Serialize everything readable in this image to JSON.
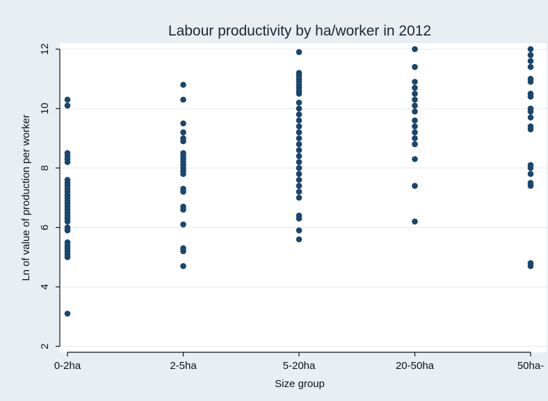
{
  "chart_data": {
    "type": "scatter",
    "title": "Labour productivity by ha/worker in 2012",
    "xlabel": "Size group",
    "ylabel": "Ln of value of production per worker",
    "categories": [
      "0-2ha",
      "2-5ha",
      "5-20ha",
      "20-50ha",
      "50ha-"
    ],
    "yticks": [
      2,
      4,
      6,
      8,
      10,
      12
    ],
    "ylim": [
      1.8,
      12.2
    ],
    "grid": true,
    "legend": "none",
    "point_color": "#1a466d",
    "series": [
      {
        "points": [
          {
            "x": "0-2ha",
            "y": 10.3
          },
          {
            "x": "0-2ha",
            "y": 10.1
          },
          {
            "x": "0-2ha",
            "y": 8.5
          },
          {
            "x": "0-2ha",
            "y": 8.4
          },
          {
            "x": "0-2ha",
            "y": 8.3
          },
          {
            "x": "0-2ha",
            "y": 8.2
          },
          {
            "x": "0-2ha",
            "y": 7.6
          },
          {
            "x": "0-2ha",
            "y": 7.5
          },
          {
            "x": "0-2ha",
            "y": 7.4
          },
          {
            "x": "0-2ha",
            "y": 7.3
          },
          {
            "x": "0-2ha",
            "y": 7.2
          },
          {
            "x": "0-2ha",
            "y": 7.1
          },
          {
            "x": "0-2ha",
            "y": 7.0
          },
          {
            "x": "0-2ha",
            "y": 6.9
          },
          {
            "x": "0-2ha",
            "y": 6.8
          },
          {
            "x": "0-2ha",
            "y": 6.7
          },
          {
            "x": "0-2ha",
            "y": 6.6
          },
          {
            "x": "0-2ha",
            "y": 6.5
          },
          {
            "x": "0-2ha",
            "y": 6.4
          },
          {
            "x": "0-2ha",
            "y": 6.3
          },
          {
            "x": "0-2ha",
            "y": 6.2
          },
          {
            "x": "0-2ha",
            "y": 6.0
          },
          {
            "x": "0-2ha",
            "y": 5.9
          },
          {
            "x": "0-2ha",
            "y": 5.5
          },
          {
            "x": "0-2ha",
            "y": 5.4
          },
          {
            "x": "0-2ha",
            "y": 5.3
          },
          {
            "x": "0-2ha",
            "y": 5.2
          },
          {
            "x": "0-2ha",
            "y": 5.1
          },
          {
            "x": "0-2ha",
            "y": 5.0
          },
          {
            "x": "0-2ha",
            "y": 3.1
          },
          {
            "x": "2-5ha",
            "y": 10.8
          },
          {
            "x": "2-5ha",
            "y": 10.3
          },
          {
            "x": "2-5ha",
            "y": 9.5
          },
          {
            "x": "2-5ha",
            "y": 9.2
          },
          {
            "x": "2-5ha",
            "y": 9.0
          },
          {
            "x": "2-5ha",
            "y": 8.9
          },
          {
            "x": "2-5ha",
            "y": 8.5
          },
          {
            "x": "2-5ha",
            "y": 8.4
          },
          {
            "x": "2-5ha",
            "y": 8.3
          },
          {
            "x": "2-5ha",
            "y": 8.2
          },
          {
            "x": "2-5ha",
            "y": 8.1
          },
          {
            "x": "2-5ha",
            "y": 8.0
          },
          {
            "x": "2-5ha",
            "y": 7.9
          },
          {
            "x": "2-5ha",
            "y": 7.8
          },
          {
            "x": "2-5ha",
            "y": 7.3
          },
          {
            "x": "2-5ha",
            "y": 7.2
          },
          {
            "x": "2-5ha",
            "y": 6.7
          },
          {
            "x": "2-5ha",
            "y": 6.6
          },
          {
            "x": "2-5ha",
            "y": 6.1
          },
          {
            "x": "2-5ha",
            "y": 5.3
          },
          {
            "x": "2-5ha",
            "y": 5.2
          },
          {
            "x": "2-5ha",
            "y": 4.7
          },
          {
            "x": "5-20ha",
            "y": 11.9
          },
          {
            "x": "5-20ha",
            "y": 11.2
          },
          {
            "x": "5-20ha",
            "y": 11.1
          },
          {
            "x": "5-20ha",
            "y": 11.0
          },
          {
            "x": "5-20ha",
            "y": 10.9
          },
          {
            "x": "5-20ha",
            "y": 10.8
          },
          {
            "x": "5-20ha",
            "y": 10.7
          },
          {
            "x": "5-20ha",
            "y": 10.6
          },
          {
            "x": "5-20ha",
            "y": 10.5
          },
          {
            "x": "5-20ha",
            "y": 10.2
          },
          {
            "x": "5-20ha",
            "y": 10.0
          },
          {
            "x": "5-20ha",
            "y": 9.8
          },
          {
            "x": "5-20ha",
            "y": 9.6
          },
          {
            "x": "5-20ha",
            "y": 9.4
          },
          {
            "x": "5-20ha",
            "y": 9.2
          },
          {
            "x": "5-20ha",
            "y": 9.0
          },
          {
            "x": "5-20ha",
            "y": 8.8
          },
          {
            "x": "5-20ha",
            "y": 8.6
          },
          {
            "x": "5-20ha",
            "y": 8.4
          },
          {
            "x": "5-20ha",
            "y": 8.2
          },
          {
            "x": "5-20ha",
            "y": 8.0
          },
          {
            "x": "5-20ha",
            "y": 7.8
          },
          {
            "x": "5-20ha",
            "y": 7.6
          },
          {
            "x": "5-20ha",
            "y": 7.4
          },
          {
            "x": "5-20ha",
            "y": 7.2
          },
          {
            "x": "5-20ha",
            "y": 7.0
          },
          {
            "x": "5-20ha",
            "y": 6.4
          },
          {
            "x": "5-20ha",
            "y": 6.3
          },
          {
            "x": "5-20ha",
            "y": 5.9
          },
          {
            "x": "5-20ha",
            "y": 5.6
          },
          {
            "x": "20-50ha",
            "y": 12.0
          },
          {
            "x": "20-50ha",
            "y": 11.4
          },
          {
            "x": "20-50ha",
            "y": 10.9
          },
          {
            "x": "20-50ha",
            "y": 10.7
          },
          {
            "x": "20-50ha",
            "y": 10.5
          },
          {
            "x": "20-50ha",
            "y": 10.3
          },
          {
            "x": "20-50ha",
            "y": 10.1
          },
          {
            "x": "20-50ha",
            "y": 9.9
          },
          {
            "x": "20-50ha",
            "y": 9.6
          },
          {
            "x": "20-50ha",
            "y": 9.4
          },
          {
            "x": "20-50ha",
            "y": 9.2
          },
          {
            "x": "20-50ha",
            "y": 9.0
          },
          {
            "x": "20-50ha",
            "y": 8.8
          },
          {
            "x": "20-50ha",
            "y": 8.3
          },
          {
            "x": "20-50ha",
            "y": 7.4
          },
          {
            "x": "20-50ha",
            "y": 6.2
          },
          {
            "x": "50ha-",
            "y": 12.0
          },
          {
            "x": "50ha-",
            "y": 11.8
          },
          {
            "x": "50ha-",
            "y": 11.6
          },
          {
            "x": "50ha-",
            "y": 11.4
          },
          {
            "x": "50ha-",
            "y": 11.0
          },
          {
            "x": "50ha-",
            "y": 10.9
          },
          {
            "x": "50ha-",
            "y": 10.5
          },
          {
            "x": "50ha-",
            "y": 10.4
          },
          {
            "x": "50ha-",
            "y": 10.0
          },
          {
            "x": "50ha-",
            "y": 9.9
          },
          {
            "x": "50ha-",
            "y": 9.7
          },
          {
            "x": "50ha-",
            "y": 9.4
          },
          {
            "x": "50ha-",
            "y": 9.3
          },
          {
            "x": "50ha-",
            "y": 8.1
          },
          {
            "x": "50ha-",
            "y": 8.0
          },
          {
            "x": "50ha-",
            "y": 7.8
          },
          {
            "x": "50ha-",
            "y": 7.5
          },
          {
            "x": "50ha-",
            "y": 7.4
          },
          {
            "x": "50ha-",
            "y": 4.8
          },
          {
            "x": "50ha-",
            "y": 4.7
          }
        ]
      }
    ]
  }
}
